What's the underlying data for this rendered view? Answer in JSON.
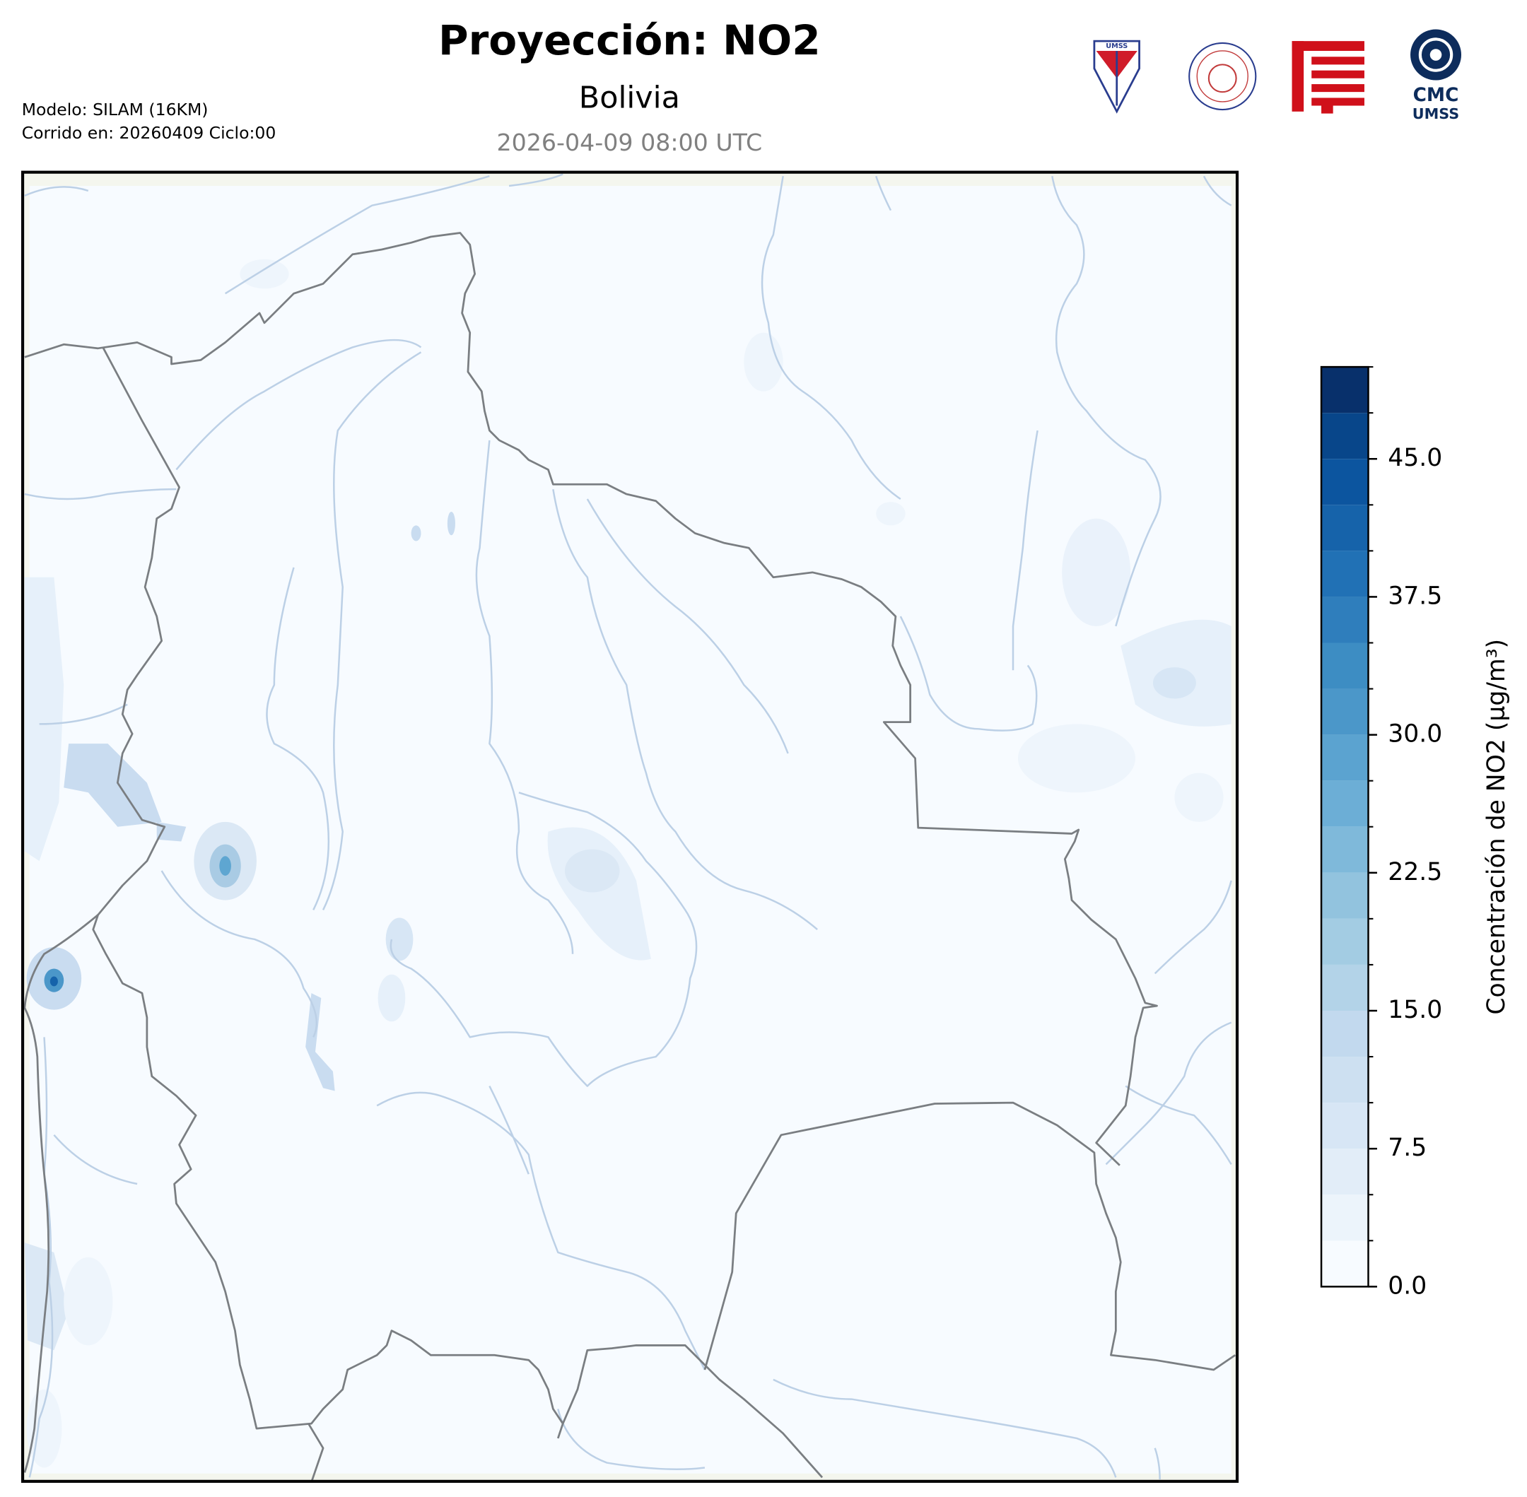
{
  "header": {
    "title": "Proyección: NO2",
    "region": "Bolivia",
    "valid_time": "2026-04-09 08:00 UTC",
    "model": "Modelo: SILAM (16KM)",
    "run": "Corrido en: 20260409 Ciclo:00"
  },
  "logos": {
    "shield_text": "UMSS",
    "cmc_text": "CMC",
    "cmc_sub": "UMSS"
  },
  "colorbar": {
    "label": "Concentración de NO2 (µg/m³)",
    "lim": [
      0,
      50
    ],
    "levels": [
      0,
      2.5,
      5,
      7.5,
      10,
      12.5,
      15,
      17.5,
      20,
      22.5,
      25,
      27.5,
      30,
      32.5,
      35,
      37.5,
      40,
      42.5,
      45,
      47.5,
      50
    ],
    "colors": [
      "#f7fbff",
      "#ecf4fb",
      "#e2edf8",
      "#d7e6f5",
      "#cde0f1",
      "#c2d9ee",
      "#b3d3e8",
      "#a3cce3",
      "#92c3de",
      "#7fb9da",
      "#6caed6",
      "#5ba3d0",
      "#4b97c9",
      "#3d8dc3",
      "#2f7ebc",
      "#2171b5",
      "#1663aa",
      "#0c559f",
      "#08468a",
      "#08306b"
    ],
    "ticks": [
      {
        "value": 0,
        "label": "0.0"
      },
      {
        "value": 7.5,
        "label": "7.5"
      },
      {
        "value": 15,
        "label": "15.0"
      },
      {
        "value": 22.5,
        "label": "22.5"
      },
      {
        "value": 30,
        "label": "30.0"
      },
      {
        "value": 37.5,
        "label": "37.5"
      },
      {
        "value": 45,
        "label": "45.0"
      }
    ]
  }
}
